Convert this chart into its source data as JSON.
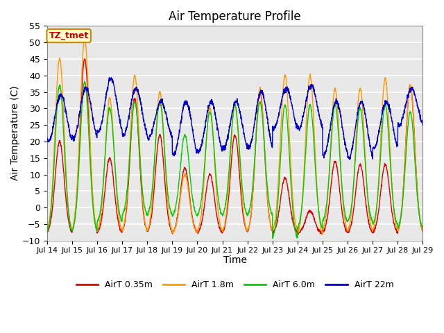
{
  "title": "Air Temperature Profile",
  "xlabel": "Time",
  "ylabel": "Air Temperature (C)",
  "ylim": [
    -10,
    55
  ],
  "xlim": [
    0,
    15
  ],
  "annotation": "TZ_tmet",
  "annotation_color": "#cc0000",
  "annotation_bg": "#ffffcc",
  "annotation_border": "#cc8800",
  "colors": {
    "AirT 0.35m": "#dd0000",
    "AirT 1.8m": "#ff9900",
    "AirT 6.0m": "#00cc00",
    "AirT 22m": "#0000cc"
  },
  "x_tick_labels": [
    "Jul 14",
    "Jul 15",
    "Jul 16",
    "Jul 17",
    "Jul 18",
    "Jul 19",
    "Jul 20",
    "Jul 21",
    "Jul 22",
    "Jul 23",
    "Jul 24",
    "Jul 25",
    "Jul 26",
    "Jul 27",
    "Jul 28",
    "Jul 29"
  ],
  "yticks": [
    -10,
    -5,
    0,
    5,
    10,
    15,
    20,
    25,
    30,
    35,
    40,
    45,
    50,
    55
  ],
  "plot_bg_color": "#e8e8e8",
  "grid_color": "#ffffff",
  "title_fontsize": 12,
  "axis_fontsize": 10,
  "tick_fontsize": 9,
  "air035_peaks": [
    20,
    45,
    15,
    33,
    22,
    12,
    10,
    22,
    35,
    9,
    -1,
    14,
    13,
    13,
    37
  ],
  "air035_nights": [
    -8,
    -8,
    -8,
    -8,
    -8,
    -8,
    -8,
    -8,
    -8,
    -8,
    -8,
    -8,
    -8,
    -8,
    -8
  ],
  "air18_peaks": [
    45,
    51,
    33,
    40,
    35,
    10,
    30,
    31,
    36,
    40,
    40,
    36,
    36,
    39,
    37
  ],
  "air18_nights": [
    -8,
    -8,
    -8,
    -8,
    -8,
    -8,
    -8,
    -8,
    -8,
    -8,
    -9,
    -8,
    -8,
    -8,
    -8
  ],
  "air60_peaks": [
    37,
    38,
    30,
    32,
    32,
    22,
    29,
    31,
    32,
    31,
    31,
    31,
    30,
    31,
    29
  ],
  "air60_nights": [
    -8,
    -8,
    -5,
    -3,
    -3,
    -3,
    -3,
    -3,
    -3,
    -10,
    -7,
    -5,
    -5,
    -6,
    -7
  ],
  "air22_peaks": [
    34,
    36,
    39,
    36,
    32,
    32,
    32,
    32,
    35,
    36,
    37,
    32,
    32,
    32,
    36
  ],
  "air22_nights": [
    20,
    21,
    23,
    22,
    21,
    16,
    17,
    18,
    18,
    24,
    24,
    16,
    15,
    18,
    25
  ]
}
